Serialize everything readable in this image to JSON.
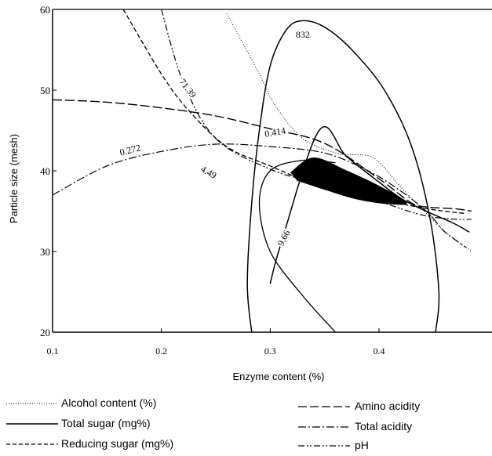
{
  "chart_data": {
    "type": "line",
    "title": "",
    "xlabel": "Enzyme content (%)",
    "ylabel": "Particle size (mesh)",
    "xlim": [
      0.1,
      0.49
    ],
    "ylim": [
      20,
      60
    ],
    "x_ticks": [
      "0.1",
      "0.2",
      "0.3",
      "0.4"
    ],
    "y_ticks": [
      "20",
      "30",
      "40",
      "50",
      "60"
    ],
    "grid": false,
    "legend_position": "bottom",
    "series": [
      {
        "name": "Alcohol content (%)",
        "style": "dotted",
        "points": [
          [
            0.26,
            59.5
          ],
          [
            0.29,
            52
          ],
          [
            0.305,
            48
          ],
          [
            0.33,
            44
          ],
          [
            0.36,
            42.2
          ],
          [
            0.37,
            42.0
          ],
          [
            0.395,
            41.6
          ],
          [
            0.42,
            38
          ],
          [
            0.445,
            34.5
          ],
          [
            0.46,
            32.5
          ],
          [
            0.475,
            31.0
          ],
          [
            0.485,
            30.0
          ]
        ]
      },
      {
        "name": "Total sugar (mg%)",
        "style": "solid",
        "points": [
          [
            0.3,
            26
          ],
          [
            0.31,
            31
          ],
          [
            0.345,
            45
          ],
          [
            0.37,
            41.8
          ],
          [
            0.4,
            38.6
          ],
          [
            0.42,
            36.6
          ],
          [
            0.44,
            35.2
          ],
          [
            0.455,
            34.3
          ],
          [
            0.47,
            33.4
          ],
          [
            0.483,
            32.4
          ]
        ]
      },
      {
        "name": "Reducing sugar (mg%)",
        "style": "dashed",
        "points": [
          [
            0.165,
            60
          ],
          [
            0.2,
            52
          ],
          [
            0.225,
            47.5
          ],
          [
            0.26,
            43
          ],
          [
            0.3,
            40.6
          ],
          [
            0.34,
            38.4
          ],
          [
            0.38,
            37.0
          ],
          [
            0.41,
            36.2
          ],
          [
            0.44,
            35.4
          ],
          [
            0.46,
            35.0
          ],
          [
            0.48,
            34.7
          ]
        ]
      },
      {
        "name": "Amino acidity",
        "style": "long-dashed",
        "points": [
          [
            0.1,
            48.8
          ],
          [
            0.15,
            48.5
          ],
          [
            0.2,
            47.8
          ],
          [
            0.25,
            46.8
          ],
          [
            0.3,
            45.2
          ],
          [
            0.35,
            43.4
          ],
          [
            0.4,
            39.0
          ],
          [
            0.43,
            36.0
          ],
          [
            0.445,
            35.5
          ],
          [
            0.47,
            35.3
          ],
          [
            0.485,
            35.0
          ]
        ]
      },
      {
        "name": "Total acidity",
        "style": "dash-dot",
        "points": [
          [
            0.1,
            37
          ],
          [
            0.15,
            40.6
          ],
          [
            0.2,
            42.4
          ],
          [
            0.25,
            43.3
          ],
          [
            0.3,
            43.0
          ],
          [
            0.35,
            42.2
          ],
          [
            0.39,
            40.0
          ],
          [
            0.42,
            37.5
          ],
          [
            0.445,
            34.8
          ],
          [
            0.46,
            32.5
          ],
          [
            0.48,
            30.5
          ]
        ]
      },
      {
        "name": "pH",
        "style": "dash-dot-dot",
        "points": [
          [
            0.2,
            60
          ],
          [
            0.22,
            51
          ],
          [
            0.25,
            44
          ],
          [
            0.3,
            40.2
          ],
          [
            0.35,
            38.2
          ],
          [
            0.4,
            36.2
          ],
          [
            0.44,
            34.5
          ],
          [
            0.47,
            34.0
          ],
          [
            0.485,
            34.0
          ]
        ]
      }
    ],
    "ellipse": {
      "name": "Total sugar (mg%)",
      "label": "832",
      "points": [
        [
          0.283,
          20
        ],
        [
          0.279,
          26
        ],
        [
          0.283,
          36
        ],
        [
          0.29,
          45
        ],
        [
          0.3,
          53
        ],
        [
          0.315,
          57.5
        ],
        [
          0.33,
          58.6
        ],
        [
          0.35,
          57.8
        ],
        [
          0.375,
          55
        ],
        [
          0.405,
          50
        ],
        [
          0.43,
          43
        ],
        [
          0.447,
          34
        ],
        [
          0.455,
          25
        ],
        [
          0.452,
          20
        ]
      ]
    },
    "inner_curve": {
      "name": "Total sugar (mg%)",
      "label": "9.66",
      "points": [
        [
          0.36,
          20
        ],
        [
          0.33,
          24.5
        ],
        [
          0.3,
          30
        ],
        [
          0.29,
          36
        ],
        [
          0.3,
          40
        ],
        [
          0.33,
          41.3
        ],
        [
          0.36,
          41.0
        ]
      ]
    },
    "shaded_region": [
      [
        0.319,
        39.8
      ],
      [
        0.34,
        41.6
      ],
      [
        0.37,
        40.0
      ],
      [
        0.4,
        38.1
      ],
      [
        0.425,
        36.1
      ],
      [
        0.41,
        35.9
      ],
      [
        0.38,
        36.5
      ],
      [
        0.35,
        37.7
      ],
      [
        0.325,
        38.8
      ]
    ],
    "curve_labels": [
      {
        "text": "832",
        "x": 0.33,
        "y": 56.5,
        "angle": 0
      },
      {
        "text": "71.39",
        "x": 0.222,
        "y": 50.0,
        "angle": 52
      },
      {
        "text": "0.414",
        "x": 0.305,
        "y": 44.4,
        "angle": -10
      },
      {
        "text": "0.272",
        "x": 0.172,
        "y": 42.2,
        "angle": -14
      },
      {
        "text": "4.49",
        "x": 0.242,
        "y": 39.5,
        "angle": 30
      },
      {
        "text": "9.66",
        "x": 0.315,
        "y": 31.5,
        "angle": -62
      }
    ]
  },
  "legend": {
    "left": [
      {
        "label": "Alcohol content (%)",
        "style": "dotted"
      },
      {
        "label": "Total sugar (mg%)",
        "style": "solid"
      },
      {
        "label": "Reducing sugar (mg%)",
        "style": "dashed"
      }
    ],
    "right": [
      {
        "label": "Amino acidity",
        "style": "long-dashed"
      },
      {
        "label": "Total acidity",
        "style": "dash-dot"
      },
      {
        "label": "pH",
        "style": "dash-dot-dot"
      }
    ]
  }
}
